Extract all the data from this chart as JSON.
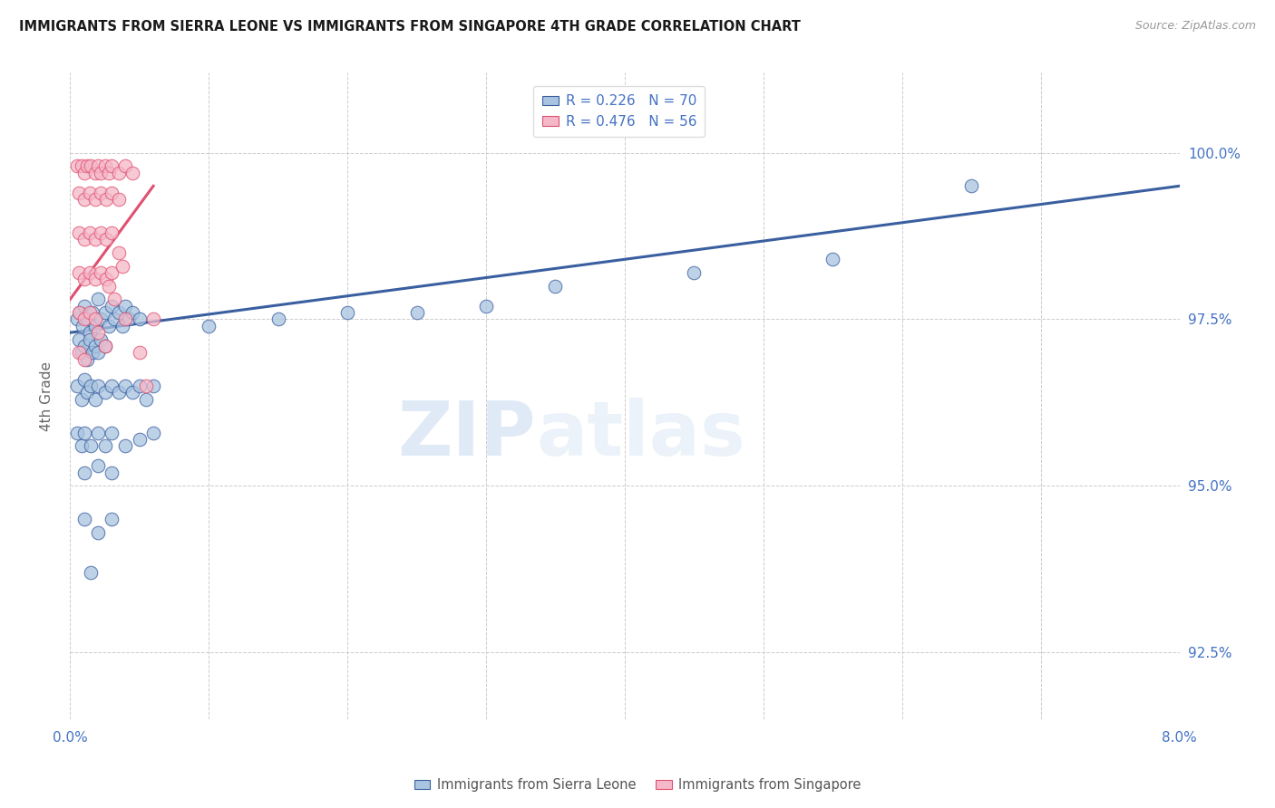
{
  "title": "IMMIGRANTS FROM SIERRA LEONE VS IMMIGRANTS FROM SINGAPORE 4TH GRADE CORRELATION CHART",
  "source": "Source: ZipAtlas.com",
  "ylabel": "4th Grade",
  "yticks": [
    92.5,
    95.0,
    97.5,
    100.0
  ],
  "ytick_labels": [
    "92.5%",
    "95.0%",
    "97.5%",
    "100.0%"
  ],
  "xlim": [
    0.0,
    8.0
  ],
  "ylim": [
    91.5,
    101.2
  ],
  "sierra_leone_color": "#a8c4e0",
  "singapore_color": "#f4b8c8",
  "sierra_leone_line_color": "#3a5fa0",
  "singapore_line_color": "#e05070",
  "watermark_zip": "ZIP",
  "watermark_atlas": "atlas",
  "sierra_leone_points": [
    [
      0.05,
      97.5
    ],
    [
      0.07,
      97.6
    ],
    [
      0.09,
      97.4
    ],
    [
      0.1,
      97.7
    ],
    [
      0.12,
      97.5
    ],
    [
      0.14,
      97.3
    ],
    [
      0.16,
      97.6
    ],
    [
      0.18,
      97.4
    ],
    [
      0.2,
      97.8
    ],
    [
      0.22,
      97.5
    ],
    [
      0.25,
      97.6
    ],
    [
      0.28,
      97.4
    ],
    [
      0.3,
      97.7
    ],
    [
      0.32,
      97.5
    ],
    [
      0.35,
      97.6
    ],
    [
      0.38,
      97.4
    ],
    [
      0.4,
      97.7
    ],
    [
      0.42,
      97.5
    ],
    [
      0.45,
      97.6
    ],
    [
      0.5,
      97.5
    ],
    [
      0.06,
      97.2
    ],
    [
      0.08,
      97.0
    ],
    [
      0.1,
      97.1
    ],
    [
      0.12,
      96.9
    ],
    [
      0.14,
      97.2
    ],
    [
      0.16,
      97.0
    ],
    [
      0.18,
      97.1
    ],
    [
      0.2,
      97.0
    ],
    [
      0.22,
      97.2
    ],
    [
      0.25,
      97.1
    ],
    [
      0.05,
      96.5
    ],
    [
      0.08,
      96.3
    ],
    [
      0.1,
      96.6
    ],
    [
      0.12,
      96.4
    ],
    [
      0.15,
      96.5
    ],
    [
      0.18,
      96.3
    ],
    [
      0.2,
      96.5
    ],
    [
      0.25,
      96.4
    ],
    [
      0.3,
      96.5
    ],
    [
      0.35,
      96.4
    ],
    [
      0.4,
      96.5
    ],
    [
      0.45,
      96.4
    ],
    [
      0.5,
      96.5
    ],
    [
      0.55,
      96.3
    ],
    [
      0.6,
      96.5
    ],
    [
      0.05,
      95.8
    ],
    [
      0.08,
      95.6
    ],
    [
      0.1,
      95.8
    ],
    [
      0.15,
      95.6
    ],
    [
      0.2,
      95.8
    ],
    [
      0.25,
      95.6
    ],
    [
      0.3,
      95.8
    ],
    [
      0.4,
      95.6
    ],
    [
      0.5,
      95.7
    ],
    [
      0.6,
      95.8
    ],
    [
      0.1,
      95.2
    ],
    [
      0.2,
      95.3
    ],
    [
      0.3,
      95.2
    ],
    [
      0.1,
      94.5
    ],
    [
      0.2,
      94.3
    ],
    [
      0.3,
      94.5
    ],
    [
      0.15,
      93.7
    ],
    [
      1.5,
      97.5
    ],
    [
      2.0,
      97.6
    ],
    [
      3.5,
      98.0
    ],
    [
      4.5,
      98.2
    ],
    [
      5.5,
      98.4
    ],
    [
      6.5,
      99.5
    ],
    [
      1.0,
      97.4
    ],
    [
      2.5,
      97.6
    ],
    [
      3.0,
      97.7
    ]
  ],
  "singapore_points": [
    [
      0.05,
      99.8
    ],
    [
      0.08,
      99.8
    ],
    [
      0.1,
      99.7
    ],
    [
      0.12,
      99.8
    ],
    [
      0.15,
      99.8
    ],
    [
      0.18,
      99.7
    ],
    [
      0.2,
      99.8
    ],
    [
      0.22,
      99.7
    ],
    [
      0.25,
      99.8
    ],
    [
      0.28,
      99.7
    ],
    [
      0.3,
      99.8
    ],
    [
      0.35,
      99.7
    ],
    [
      0.4,
      99.8
    ],
    [
      0.45,
      99.7
    ],
    [
      0.06,
      99.4
    ],
    [
      0.1,
      99.3
    ],
    [
      0.14,
      99.4
    ],
    [
      0.18,
      99.3
    ],
    [
      0.22,
      99.4
    ],
    [
      0.26,
      99.3
    ],
    [
      0.3,
      99.4
    ],
    [
      0.35,
      99.3
    ],
    [
      0.06,
      98.8
    ],
    [
      0.1,
      98.7
    ],
    [
      0.14,
      98.8
    ],
    [
      0.18,
      98.7
    ],
    [
      0.22,
      98.8
    ],
    [
      0.26,
      98.7
    ],
    [
      0.3,
      98.8
    ],
    [
      0.06,
      98.2
    ],
    [
      0.1,
      98.1
    ],
    [
      0.14,
      98.2
    ],
    [
      0.18,
      98.1
    ],
    [
      0.22,
      98.2
    ],
    [
      0.26,
      98.1
    ],
    [
      0.3,
      98.2
    ],
    [
      0.06,
      97.6
    ],
    [
      0.1,
      97.5
    ],
    [
      0.14,
      97.6
    ],
    [
      0.18,
      97.5
    ],
    [
      0.06,
      97.0
    ],
    [
      0.1,
      96.9
    ],
    [
      0.35,
      98.5
    ],
    [
      0.4,
      97.5
    ],
    [
      0.5,
      97.0
    ],
    [
      0.55,
      96.5
    ],
    [
      0.6,
      97.5
    ],
    [
      0.2,
      97.3
    ],
    [
      0.25,
      97.1
    ],
    [
      0.28,
      98.0
    ],
    [
      0.32,
      97.8
    ],
    [
      0.38,
      98.3
    ]
  ],
  "sl_line_x": [
    0.0,
    8.0
  ],
  "sl_line_y": [
    97.3,
    99.5
  ],
  "sg_line_x": [
    0.0,
    0.6
  ],
  "sg_line_y": [
    97.8,
    99.5
  ]
}
